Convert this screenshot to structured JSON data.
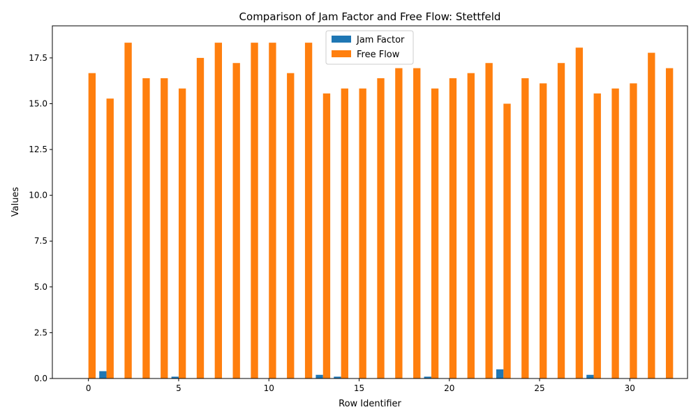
{
  "chart_data": {
    "type": "bar",
    "title": "Comparison of Jam Factor and Free Flow: Stettfeld",
    "xlabel": "Row Identifier",
    "ylabel": "Values",
    "x": [
      0,
      1,
      2,
      3,
      4,
      5,
      6,
      7,
      8,
      9,
      10,
      11,
      12,
      13,
      14,
      15,
      16,
      17,
      18,
      19,
      20,
      21,
      22,
      23,
      24,
      25,
      26,
      27,
      28,
      29,
      30,
      31,
      32
    ],
    "xticks": [
      0,
      5,
      10,
      15,
      20,
      25,
      30
    ],
    "xticklabels": [
      "0",
      "5",
      "10",
      "15",
      "20",
      "25",
      "30"
    ],
    "xlim": [
      -2,
      33.2
    ],
    "yticks": [
      0.0,
      2.5,
      5.0,
      7.5,
      10.0,
      12.5,
      15.0,
      17.5
    ],
    "yticklabels": [
      "0.0",
      "2.5",
      "5.0",
      "7.5",
      "10.0",
      "12.5",
      "15.0",
      "17.5"
    ],
    "ylim": [
      0,
      19.25
    ],
    "legend_position": "top-center",
    "series": [
      {
        "name": "Jam Factor",
        "color": "#1f77b4",
        "values": [
          0,
          0.4,
          0,
          0,
          0,
          0.1,
          0,
          0,
          0,
          0,
          0,
          0,
          0,
          0.2,
          0.1,
          0,
          0,
          0,
          0,
          0.1,
          0,
          0,
          0,
          0.5,
          0,
          0,
          0,
          0,
          0.2,
          0,
          0,
          0,
          0
        ]
      },
      {
        "name": "Free Flow",
        "color": "#ff7f0e",
        "values": [
          16.67,
          15.28,
          18.33,
          16.39,
          16.39,
          15.83,
          17.5,
          18.33,
          17.22,
          18.33,
          18.33,
          16.67,
          18.33,
          15.56,
          15.83,
          15.83,
          16.39,
          16.94,
          16.94,
          15.83,
          16.39,
          16.67,
          17.22,
          15.0,
          16.39,
          16.11,
          17.22,
          18.06,
          15.56,
          15.83,
          16.11,
          17.78,
          16.94
        ]
      }
    ]
  }
}
